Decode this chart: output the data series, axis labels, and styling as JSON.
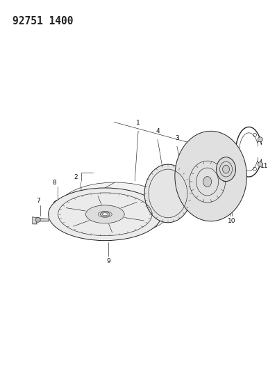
{
  "title_text": "92751 1400",
  "bg_color": "#ffffff",
  "line_color": "#222222",
  "label_color": "#111111",
  "label_fontsize": 7.0,
  "fig_width": 3.86,
  "fig_height": 5.33,
  "dpi": 100
}
